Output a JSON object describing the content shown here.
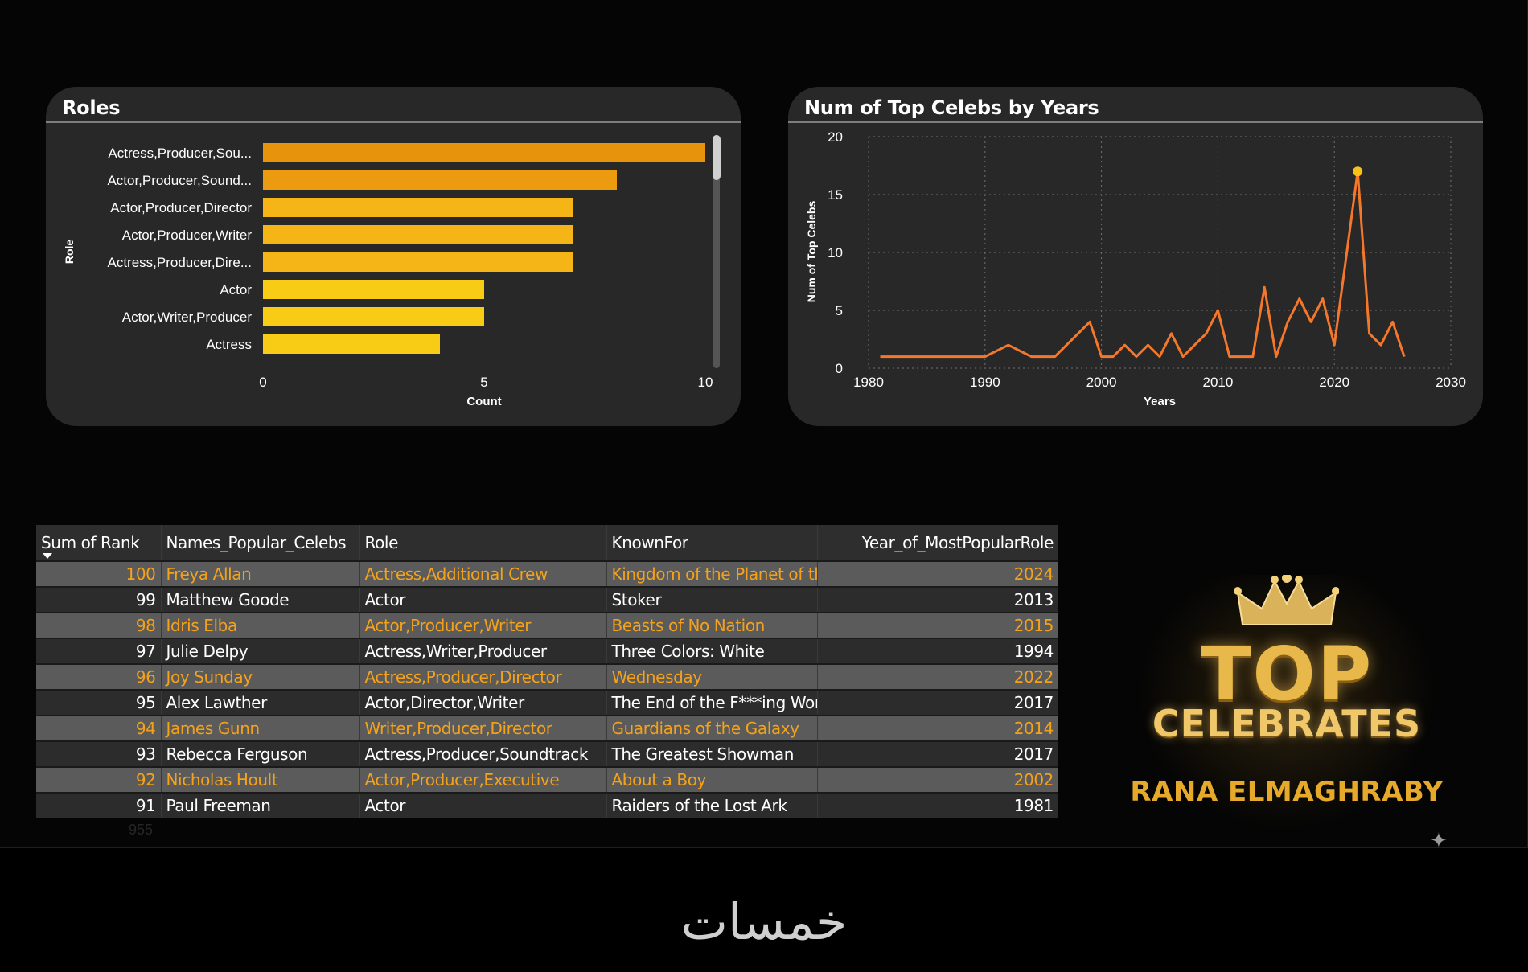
{
  "colors": {
    "bar_top": "#e8930c",
    "bar_mid": "#f5b516",
    "bar_low": "#f8cc14",
    "line": "#f5782a",
    "point": "#f6c21a",
    "accent_text": "#f4a21a"
  },
  "chart_data": [
    {
      "type": "bar",
      "orientation": "horizontal",
      "title": "Roles",
      "xlabel": "Count",
      "ylabel": "Role",
      "categories": [
        "Actress,Producer,Sou...",
        "Actor,Producer,Sound...",
        "Actor,Producer,Director",
        "Actor,Producer,Writer",
        "Actress,Producer,Dire...",
        "Actor",
        "Actor,Writer,Producer",
        "Actress"
      ],
      "values": [
        10,
        8,
        7,
        7,
        7,
        5,
        5,
        4
      ],
      "xlim": [
        0,
        10
      ],
      "xticks": [
        "0",
        "5",
        "10"
      ],
      "grid": false,
      "scrollbar": true
    },
    {
      "type": "line",
      "title": "Num of Top Celebs by Years",
      "xlabel": "Years",
      "ylabel": "Num of Top Celebs",
      "xlim": [
        1980,
        2030
      ],
      "ylim": [
        0,
        20
      ],
      "xticks": [
        "1980",
        "1990",
        "2000",
        "2010",
        "2020",
        "2030"
      ],
      "yticks": [
        "0",
        "5",
        "10",
        "15",
        "20"
      ],
      "grid": true,
      "x": [
        1981,
        1990,
        1992,
        1994,
        1996,
        1999,
        2000,
        2001,
        2002,
        2003,
        2004,
        2005,
        2006,
        2007,
        2008,
        2009,
        2010,
        2011,
        2012,
        2013,
        2014,
        2015,
        2016,
        2017,
        2018,
        2019,
        2020,
        2022,
        2023,
        2024,
        2025,
        2026
      ],
      "values": [
        1,
        1,
        2,
        1,
        1,
        4,
        1,
        1,
        2,
        1,
        2,
        1,
        3,
        1,
        2,
        3,
        5,
        1,
        1,
        1,
        7,
        1,
        4,
        6,
        4,
        6,
        2,
        17,
        3,
        2,
        4,
        1
      ],
      "highlight": {
        "x": 2022,
        "y": 17
      }
    }
  ],
  "table": {
    "headers": [
      "Sum of Rank",
      "Names_Popular_Celebs",
      "Role",
      "KnownFor",
      "Year_of_MostPopularRole"
    ],
    "rows": [
      [
        "100",
        "Freya Allan",
        "Actress,Additional Crew",
        "Kingdom of the Planet of the Apes",
        "2024"
      ],
      [
        "99",
        "Matthew Goode",
        "Actor",
        "Stoker",
        "2013"
      ],
      [
        "98",
        "Idris Elba",
        "Actor,Producer,Writer",
        "Beasts of No Nation",
        "2015"
      ],
      [
        "97",
        "Julie Delpy",
        "Actress,Writer,Producer",
        "Three Colors: White",
        "1994"
      ],
      [
        "96",
        "Joy Sunday",
        "Actress,Producer,Director",
        "Wednesday",
        "2022"
      ],
      [
        "95",
        "Alex Lawther",
        "Actor,Director,Writer",
        "The End of the F***ing World",
        "2017"
      ],
      [
        "94",
        "James Gunn",
        "Writer,Producer,Director",
        "Guardians of the Galaxy",
        "2014"
      ],
      [
        "93",
        "Rebecca Ferguson",
        "Actress,Producer,Soundtrack",
        "The Greatest Showman",
        "2017"
      ],
      [
        "92",
        "Nicholas Hoult",
        "Actor,Producer,Executive",
        "About a Boy",
        "2002"
      ],
      [
        "91",
        "Paul Freeman",
        "Actor",
        "Raiders of the Lost Ark",
        "1981"
      ]
    ],
    "total": "955"
  },
  "logo": {
    "line1": "TOP",
    "line2": "CELEBRATES",
    "author": "RANA ELMAGHRABY",
    "icon": "crown-icon"
  },
  "watermark": "خمسات",
  "sparkle": "✦"
}
